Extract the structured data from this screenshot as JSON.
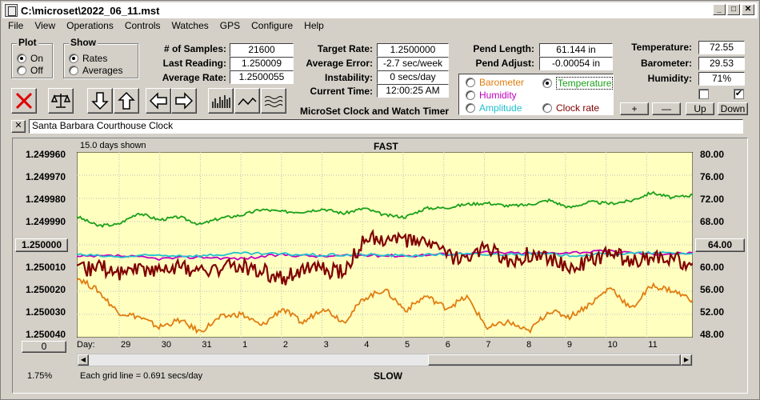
{
  "window": {
    "title": "C:\\microset\\2022_06_11.mst"
  },
  "menu": [
    "File",
    "View",
    "Operations",
    "Controls",
    "Watches",
    "GPS",
    "Configure",
    "Help"
  ],
  "plot_group": {
    "legend": "Plot",
    "options": [
      {
        "label": "On",
        "selected": true
      },
      {
        "label": "Off",
        "selected": false
      }
    ]
  },
  "show_group": {
    "legend": "Show",
    "options": [
      {
        "label": "Rates",
        "selected": true
      },
      {
        "label": "Averages",
        "selected": false
      }
    ]
  },
  "stats": {
    "samples_label": "# of Samples:",
    "samples": "21600",
    "last_label": "Last Reading:",
    "last": "1.250009",
    "avg_label": "Average Rate:",
    "avg": "1.2500055",
    "target_label": "Target Rate:",
    "target": "1.2500000",
    "err_label": "Average Error:",
    "err": "-2.7 sec/week",
    "inst_label": "Instability:",
    "inst": "0 secs/day",
    "time_label": "Current Time:",
    "time": "12:00:25 AM",
    "pendlen_label": "Pend Length:",
    "pendlen": "61.144 in",
    "pendadj_label": "Pend Adjust:",
    "pendadj": "-0.00054 in",
    "temp_label": "Temperature:",
    "temp": "72.55",
    "baro_label": "Barometer:",
    "baro": "29.53",
    "hum_label": "Humidity:",
    "hum": "71%"
  },
  "app_caption": "MicroSet Clock and Watch Timer",
  "sensor_select": [
    {
      "label": "Barometer",
      "color": "#e07d10",
      "selected": false
    },
    {
      "label": "Temperature",
      "color": "#1aa01a",
      "selected": true
    },
    {
      "label": "Humidity",
      "color": "#c000c0",
      "selected": false
    },
    {
      "label": "Amplitude",
      "color": "#20c0d0",
      "selected": false
    },
    {
      "label": "Clock rate",
      "color": "#800000",
      "selected": false
    }
  ],
  "right_buttons": {
    "plus": "+",
    "minus": "—",
    "up": "Up",
    "down": "Down"
  },
  "checkboxes": [
    {
      "checked": false
    },
    {
      "checked": true
    }
  ],
  "clock_name": "Santa Barbara Courthouse Clock",
  "close_x": "✕",
  "chart_header": {
    "days_shown": "15.0 days shown",
    "fast": "FAST",
    "slow": "SLOW",
    "grid_note": "Each grid line = 0.691 secs/day",
    "percent": "1.75%",
    "zero_btn": "0",
    "center_left": "1.250000",
    "center_right": "64.00",
    "day_label": "Day:"
  },
  "chart_data": {
    "type": "line",
    "left_axis": {
      "labels": [
        "1.249960",
        "1.249970",
        "1.249980",
        "1.249990",
        "",
        "1.250010",
        "1.250020",
        "1.250030",
        "1.250040"
      ]
    },
    "right_axis": {
      "labels": [
        "80.00",
        "76.00",
        "72.00",
        "68.00",
        "",
        "60.00",
        "56.00",
        "52.00",
        "48.00"
      ]
    },
    "days": [
      "29",
      "30",
      "31",
      "1",
      "2",
      "3",
      "4",
      "5",
      "6",
      "7",
      "8",
      "9",
      "10",
      "11"
    ],
    "series_colors": {
      "temperature": "#1aa01a",
      "barometer": "#e07d10",
      "humidity": "#c000c0",
      "amplitude": "#20c0d0",
      "rate": "#800000"
    },
    "series": [
      {
        "key": "temperature",
        "x": [
          0,
          0.5,
          1,
          1.5,
          2,
          2.5,
          3,
          3.5,
          4,
          4.5,
          5,
          5.5,
          6,
          6.5,
          7,
          7.5,
          8,
          8.5,
          9,
          9.5,
          10,
          10.5,
          11,
          11.5,
          12,
          12.5,
          13,
          13.5,
          14,
          14.5,
          15
        ],
        "values": [
          68.9,
          67.3,
          67.5,
          69.5,
          68.3,
          68.8,
          67.5,
          68.6,
          69.1,
          70.1,
          69.7,
          69.7,
          70.2,
          69.4,
          70.3,
          69.1,
          68.8,
          70.3,
          70.4,
          71.0,
          71.2,
          70.7,
          70.9,
          71.7,
          70.4,
          71.4,
          71.1,
          71.6,
          73.0,
          72.1,
          72.6
        ]
      },
      {
        "key": "barometer",
        "x": [
          0,
          0.5,
          1,
          1.5,
          2,
          2.5,
          3,
          3.5,
          4,
          4.5,
          5,
          5.5,
          6,
          6.5,
          7,
          7.5,
          8,
          8.5,
          9,
          9.5,
          10,
          10.5,
          11,
          11.5,
          12,
          12.5,
          13,
          13.5,
          14,
          14.5,
          15
        ],
        "values": [
          58.4,
          56.2,
          52.4,
          51.6,
          49.8,
          51.0,
          49.0,
          51.5,
          52.1,
          50.0,
          53.0,
          50.5,
          53.2,
          50.7,
          54.8,
          56.3,
          52.7,
          55.2,
          53.1,
          55.0,
          49.6,
          50.7,
          49.0,
          52.6,
          51.6,
          53.8,
          56.7,
          52.9,
          57.0,
          56.1,
          54.5
        ]
      },
      {
        "key": "humidity",
        "x": [
          0,
          1,
          2,
          3,
          4,
          5,
          6,
          7,
          8,
          9,
          10,
          11,
          12,
          13,
          14,
          15
        ],
        "values": [
          61.9,
          62.1,
          61.6,
          61.9,
          61.6,
          62.3,
          62.0,
          62.2,
          62.1,
          62.4,
          62.7,
          62.5,
          62.7,
          62.9,
          62.4,
          62.6
        ]
      },
      {
        "key": "amplitude",
        "x": [
          0,
          1,
          2,
          3,
          4,
          5,
          6,
          7,
          8,
          9,
          10,
          11,
          12,
          13,
          14,
          15
        ],
        "values": [
          62.3,
          61.9,
          62.2,
          62.1,
          62.5,
          62.4,
          62.2,
          62.3,
          62.1,
          62.4,
          62.3,
          62.5,
          62.2,
          62.4,
          62.6,
          62.5
        ]
      },
      {
        "key": "rate",
        "x": [
          0,
          0.5,
          1,
          1.5,
          2,
          2.5,
          3,
          3.5,
          4,
          4.5,
          5,
          5.5,
          6,
          6.5,
          7,
          7.5,
          8,
          8.5,
          9,
          9.5,
          10,
          10.5,
          11,
          11.5,
          12,
          12.5,
          13,
          13.5,
          14,
          14.5,
          15
        ],
        "values": [
          1.250012,
          1.250009,
          1.250012,
          1.25001,
          1.250011,
          1.250009,
          1.250012,
          1.25001,
          1.250009,
          1.250011,
          1.250015,
          1.25001,
          1.250011,
          1.250012,
          1.249998,
          1.249997,
          1.249999,
          1.249998,
          1.250005,
          1.250007,
          1.250001,
          1.250008,
          1.250004,
          1.250005,
          1.250011,
          1.250007,
          1.250003,
          1.250008,
          1.250005,
          1.250006,
          1.250008
        ]
      }
    ],
    "left_ylim": [
      1.24996,
      1.25004
    ],
    "right_ylim": [
      48,
      80
    ]
  }
}
